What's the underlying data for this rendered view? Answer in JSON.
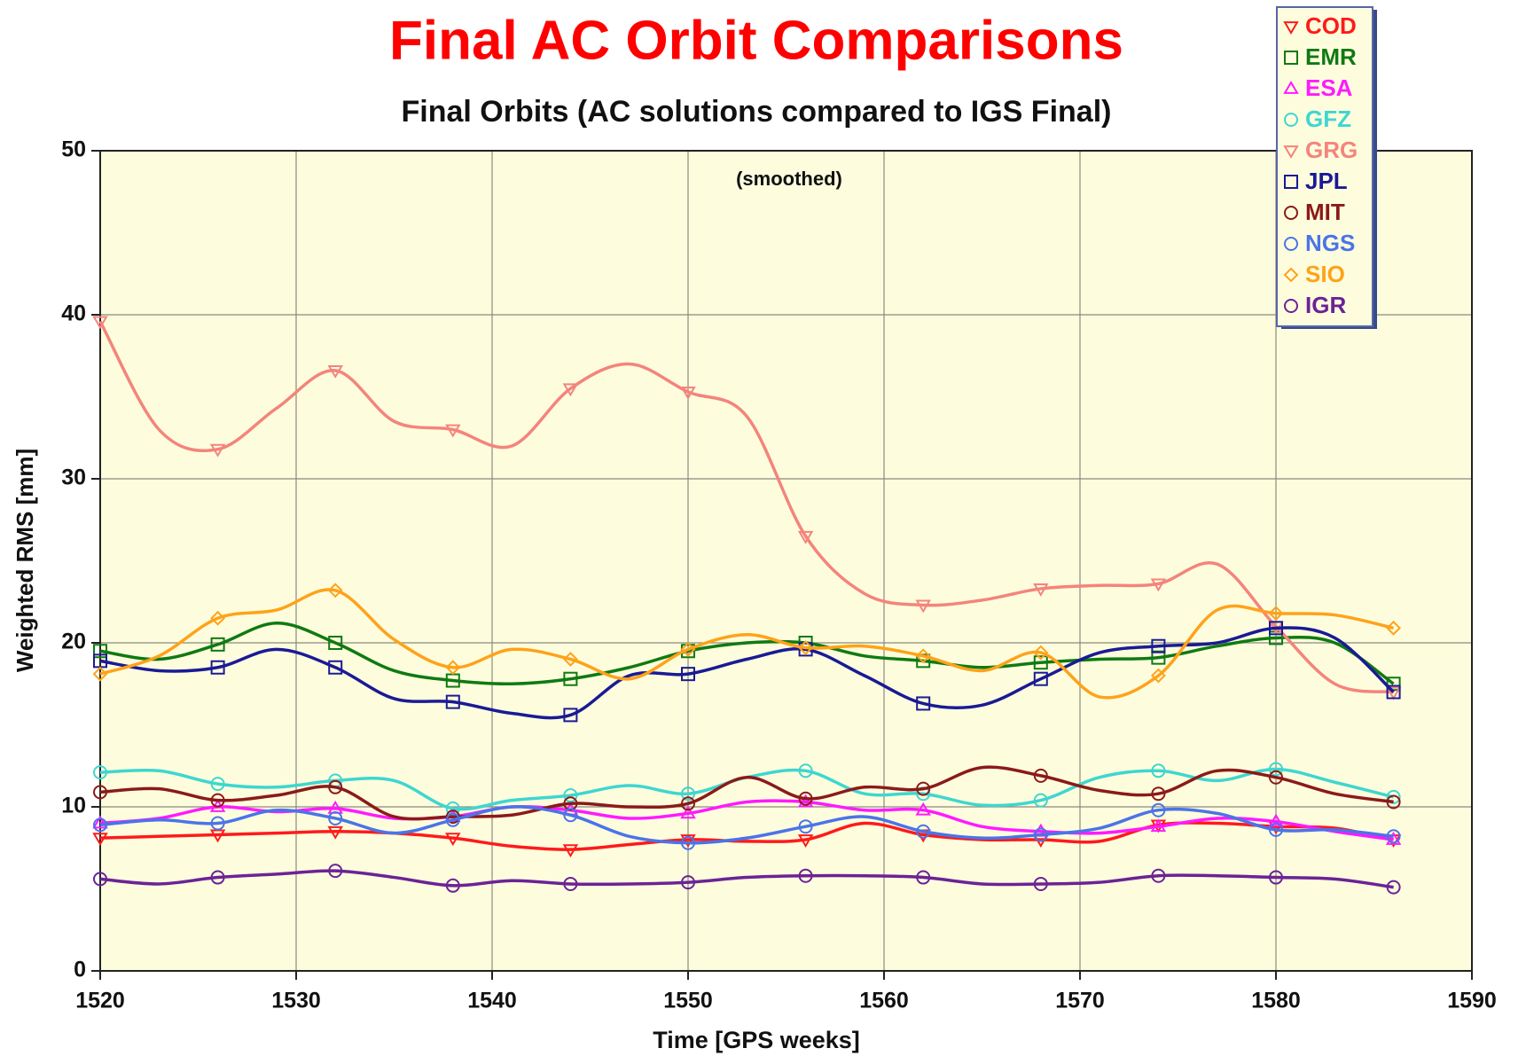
{
  "chart_data": {
    "type": "line",
    "title": "Final AC Orbit Comparisons",
    "subtitle": "Final Orbits (AC solutions compared to IGS Final)",
    "annotation": "(smoothed)",
    "xlabel": "Time [GPS weeks]",
    "ylabel": "Weighted RMS [mm]",
    "x": [
      1520,
      1523,
      1526,
      1529,
      1532,
      1535,
      1538,
      1541,
      1544,
      1547,
      1550,
      1553,
      1556,
      1559,
      1562,
      1565,
      1568,
      1571,
      1574,
      1577,
      1580,
      1583,
      1586
    ],
    "xlim": [
      1520,
      1590
    ],
    "xticks": [
      1520,
      1530,
      1540,
      1550,
      1560,
      1570,
      1580,
      1590
    ],
    "ylim": [
      0,
      50
    ],
    "yticks": [
      0,
      10,
      20,
      30,
      40,
      50
    ],
    "grid": true,
    "legend": "top-right",
    "series": [
      {
        "name": "COD",
        "color": "#ff1a1a",
        "marker": "triangle-down",
        "values": [
          8.1,
          8.2,
          8.3,
          8.4,
          8.5,
          8.4,
          8.1,
          7.6,
          7.4,
          7.7,
          8.0,
          7.9,
          8.0,
          9.0,
          8.3,
          8.0,
          8.0,
          7.9,
          8.9,
          9.0,
          8.8,
          8.7,
          8.0
        ]
      },
      {
        "name": "EMR",
        "color": "#0f7a12",
        "marker": "square",
        "values": [
          19.5,
          19.0,
          19.9,
          21.2,
          20.0,
          18.3,
          17.7,
          17.5,
          17.8,
          18.5,
          19.5,
          20.0,
          20.0,
          19.2,
          18.9,
          18.5,
          18.8,
          19.0,
          19.1,
          19.8,
          20.3,
          20.0,
          17.5
        ]
      },
      {
        "name": "ESA",
        "color": "#ff1aff",
        "marker": "triangle-up",
        "values": [
          9.0,
          9.3,
          10.0,
          9.7,
          9.9,
          9.3,
          9.4,
          10.0,
          9.8,
          9.3,
          9.6,
          10.3,
          10.3,
          9.8,
          9.8,
          8.8,
          8.5,
          8.4,
          8.8,
          9.3,
          9.1,
          8.5,
          8.0
        ]
      },
      {
        "name": "GFZ",
        "color": "#3fd6d0",
        "marker": "circle",
        "values": [
          12.1,
          12.2,
          11.4,
          11.2,
          11.6,
          11.6,
          9.9,
          10.4,
          10.7,
          11.3,
          10.8,
          11.8,
          12.2,
          10.8,
          10.8,
          10.1,
          10.4,
          11.8,
          12.2,
          11.6,
          12.3,
          11.5,
          10.6
        ]
      },
      {
        "name": "GRG",
        "color": "#f4847c",
        "marker": "triangle-down",
        "values": [
          39.6,
          33.0,
          31.8,
          34.3,
          36.6,
          33.5,
          33.0,
          32.0,
          35.5,
          37.0,
          35.3,
          33.8,
          26.5,
          23.0,
          22.3,
          22.6,
          23.3,
          23.5,
          23.6,
          24.8,
          21.0,
          17.5,
          17.0
        ]
      },
      {
        "name": "JPL",
        "color": "#1a1a96",
        "marker": "square",
        "values": [
          18.9,
          18.3,
          18.5,
          19.6,
          18.5,
          16.6,
          16.4,
          15.7,
          15.6,
          18.0,
          18.1,
          19.0,
          19.6,
          18.0,
          16.3,
          16.2,
          17.8,
          19.4,
          19.8,
          20.0,
          20.9,
          20.3,
          17.0
        ]
      },
      {
        "name": "MIT",
        "color": "#8b1a1a",
        "marker": "circle",
        "values": [
          10.9,
          11.1,
          10.4,
          10.7,
          11.2,
          9.4,
          9.4,
          9.5,
          10.2,
          10.0,
          10.2,
          11.8,
          10.5,
          11.2,
          11.1,
          12.4,
          11.9,
          11.0,
          10.8,
          12.2,
          11.8,
          10.8,
          10.3
        ]
      },
      {
        "name": "NGS",
        "color": "#4a74e8",
        "marker": "circle",
        "values": [
          8.9,
          9.2,
          9.0,
          9.8,
          9.3,
          8.4,
          9.2,
          10.0,
          9.5,
          8.2,
          7.8,
          8.1,
          8.8,
          9.4,
          8.5,
          8.1,
          8.3,
          8.7,
          9.8,
          9.6,
          8.6,
          8.6,
          8.2
        ]
      },
      {
        "name": "SIO",
        "color": "#ffa21a",
        "marker": "diamond",
        "values": [
          18.1,
          19.2,
          21.5,
          22.0,
          23.2,
          20.2,
          18.5,
          19.6,
          19.0,
          17.8,
          19.6,
          20.5,
          19.7,
          19.8,
          19.2,
          18.3,
          19.4,
          16.7,
          18.0,
          22.0,
          21.8,
          21.7,
          20.9
        ]
      },
      {
        "name": "IGR",
        "color": "#6b2396",
        "marker": "circle",
        "values": [
          5.6,
          5.3,
          5.7,
          5.9,
          6.1,
          5.7,
          5.2,
          5.5,
          5.3,
          5.3,
          5.4,
          5.7,
          5.8,
          5.8,
          5.7,
          5.3,
          5.3,
          5.4,
          5.8,
          5.8,
          5.7,
          5.6,
          5.1
        ]
      }
    ]
  }
}
